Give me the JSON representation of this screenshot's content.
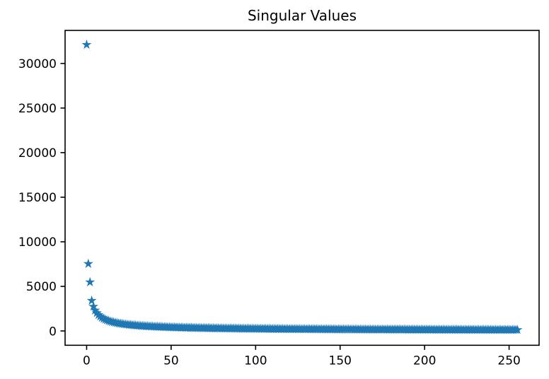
{
  "chart": {
    "title": "Singular Values",
    "background_color": "#ffffff",
    "axis_color": "#000000",
    "marker_color": "#1f77b4",
    "marker_shape": "star"
  },
  "chart_data": {
    "type": "scatter",
    "title": "Singular Values",
    "xlabel": "",
    "ylabel": "",
    "legend": null,
    "grid": false,
    "marker": "star",
    "series_color": "#1f77b4",
    "n_points": 256,
    "xlim": [
      -12.75,
      267.75
    ],
    "ylim": [
      -1605,
      33705
    ],
    "x_ticks": [
      0,
      50,
      100,
      150,
      200,
      250
    ],
    "y_ticks": [
      0,
      5000,
      10000,
      15000,
      20000,
      25000,
      30000
    ],
    "x": [
      0,
      1,
      2,
      3,
      4,
      5,
      6,
      7,
      8,
      9,
      10,
      11,
      12,
      13,
      14,
      15,
      16,
      17,
      18,
      19,
      20,
      21,
      22,
      23,
      24,
      25,
      26,
      27,
      28,
      29,
      30,
      31,
      32,
      33,
      34,
      35,
      36,
      37,
      38,
      39,
      40,
      41,
      42,
      43,
      44,
      45,
      46,
      47,
      48,
      49,
      50,
      51,
      52,
      53,
      54,
      55,
      56,
      57,
      58,
      59,
      60,
      61,
      62,
      63,
      64,
      65,
      66,
      67,
      68,
      69,
      70,
      71,
      72,
      73,
      74,
      75,
      76,
      77,
      78,
      79,
      80,
      81,
      82,
      83,
      84,
      85,
      86,
      87,
      88,
      89,
      90,
      91,
      92,
      93,
      94,
      95,
      96,
      97,
      98,
      99,
      100,
      101,
      102,
      103,
      104,
      105,
      106,
      107,
      108,
      109,
      110,
      111,
      112,
      113,
      114,
      115,
      116,
      117,
      118,
      119,
      120,
      121,
      122,
      123,
      124,
      125,
      126,
      127,
      128,
      129,
      130,
      131,
      132,
      133,
      134,
      135,
      136,
      137,
      138,
      139,
      140,
      141,
      142,
      143,
      144,
      145,
      146,
      147,
      148,
      149,
      150,
      151,
      152,
      153,
      154,
      155,
      156,
      157,
      158,
      159,
      160,
      161,
      162,
      163,
      164,
      165,
      166,
      167,
      168,
      169,
      170,
      171,
      172,
      173,
      174,
      175,
      176,
      177,
      178,
      179,
      180,
      181,
      182,
      183,
      184,
      185,
      186,
      187,
      188,
      189,
      190,
      191,
      192,
      193,
      194,
      195,
      196,
      197,
      198,
      199,
      200,
      201,
      202,
      203,
      204,
      205,
      206,
      207,
      208,
      209,
      210,
      211,
      212,
      213,
      214,
      215,
      216,
      217,
      218,
      219,
      220,
      221,
      222,
      223,
      224,
      225,
      226,
      227,
      228,
      229,
      230,
      231,
      232,
      233,
      234,
      235,
      236,
      237,
      238,
      239,
      240,
      241,
      242,
      243,
      244,
      245,
      246,
      247,
      248,
      249,
      250,
      251,
      252,
      253,
      254,
      255
    ],
    "values": [
      32100,
      7530,
      5470,
      3400,
      2740,
      2318,
      2022,
      1801,
      1629,
      1491,
      1378,
      1283,
      1202,
      1132,
      1071,
      1017,
      969,
      926,
      887,
      852,
      819,
      790,
      763,
      738,
      715,
      693,
      673,
      654,
      637,
      620,
      605,
      590,
      576,
      563,
      550,
      539,
      527,
      517,
      507,
      497,
      487,
      478,
      470,
      462,
      454,
      446,
      439,
      432,
      425,
      418,
      412,
      406,
      400,
      395,
      389,
      384,
      379,
      374,
      369,
      364,
      359,
      355,
      351,
      347,
      343,
      339,
      335,
      331,
      327,
      323,
      320,
      317,
      313,
      310,
      307,
      304,
      301,
      298,
      295,
      293,
      290,
      287,
      285,
      282,
      280,
      277,
      275,
      272,
      270,
      267,
      265,
      263,
      261,
      259,
      257,
      255,
      253,
      251,
      249,
      247,
      245,
      243,
      241,
      240,
      238,
      236,
      234,
      233,
      231,
      229,
      228,
      226,
      225,
      223,
      222,
      220,
      219,
      217,
      216,
      215,
      214,
      212,
      211,
      210,
      208,
      207,
      206,
      205,
      204,
      202,
      201,
      200,
      199,
      198,
      197,
      196,
      195,
      194,
      193,
      191,
      190,
      189,
      188,
      187,
      186,
      185,
      184,
      184,
      183,
      182,
      181,
      180,
      179,
      178,
      177,
      176,
      175,
      175,
      174,
      173,
      172,
      171,
      170,
      170,
      169,
      168,
      167,
      166,
      166,
      165,
      165,
      164,
      163,
      162,
      162,
      161,
      160,
      160,
      159,
      158,
      158,
      157,
      156,
      156,
      155,
      154,
      154,
      153,
      153,
      152,
      151,
      151,
      150,
      150,
      149,
      148,
      148,
      147,
      147,
      146,
      146,
      145,
      145,
      144,
      143,
      143,
      142,
      142,
      141,
      141,
      140,
      140,
      139,
      139,
      138,
      138,
      137,
      137,
      136,
      136,
      136,
      135,
      135,
      134,
      134,
      133,
      133,
      132,
      132,
      131,
      131,
      131,
      130,
      130,
      129,
      129,
      128,
      128,
      128,
      127,
      127,
      126,
      126,
      126,
      125,
      125,
      124,
      124,
      124,
      123,
      123,
      123,
      122,
      122,
      121,
      121
    ]
  }
}
